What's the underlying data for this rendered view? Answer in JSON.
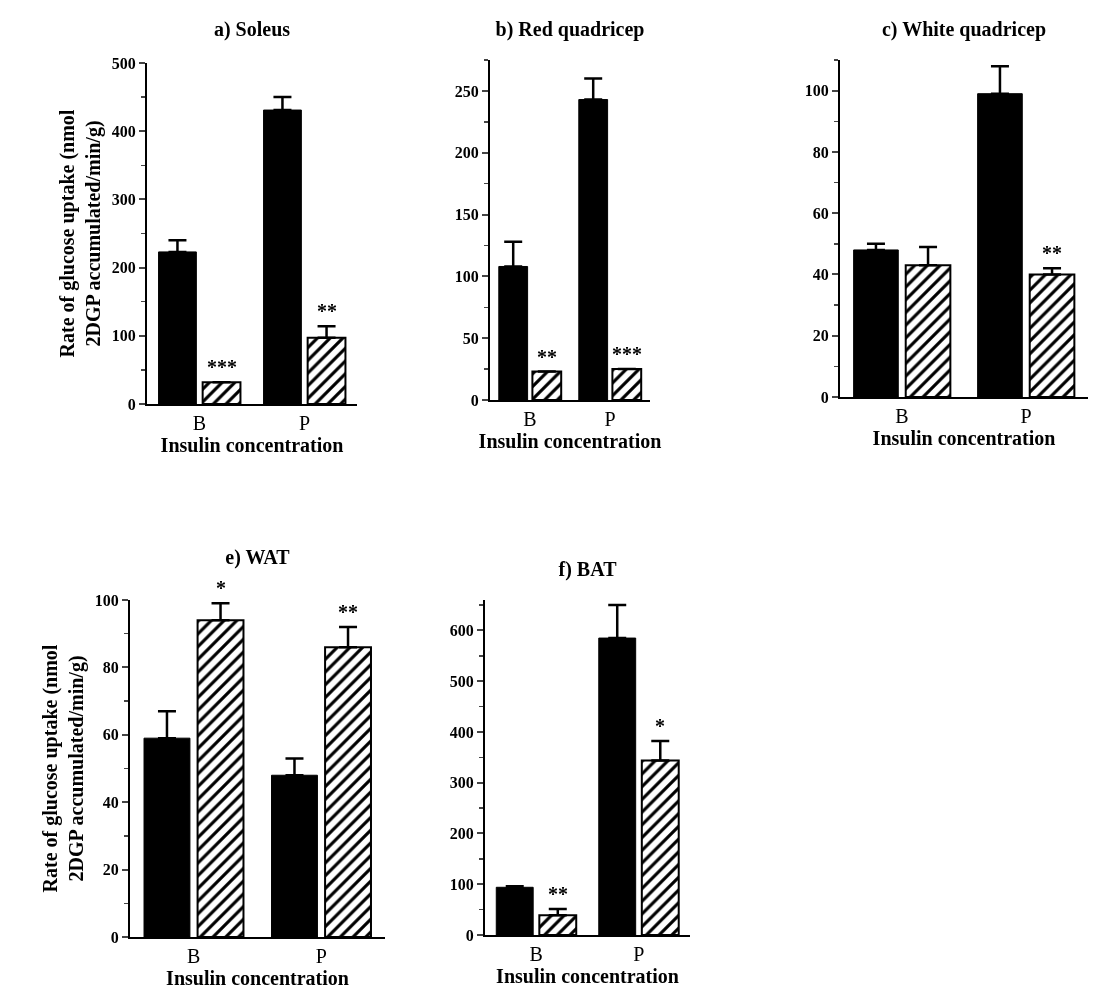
{
  "chart_data": [
    {
      "type": "bar",
      "title": "a) Soleus",
      "ylabel": "Rate of glucose uptake (nmol\n2DGP accumulated/min/g)",
      "xlabel": "Insulin concentration",
      "categories": [
        "B",
        "P"
      ],
      "series": [
        {
          "color": "#000000",
          "values": [
            223,
            431
          ],
          "errors": [
            [
              223,
              240
            ],
            [
              431,
              450
            ]
          ]
        },
        {
          "color": "#000000",
          "values": [
            32,
            97
          ],
          "errors": [
            null,
            [
              97,
              114
            ]
          ]
        }
      ],
      "ylim": [
        0,
        500
      ],
      "yticks": [
        0,
        100,
        200,
        300,
        400,
        500
      ],
      "annotations": [
        {
          "text": "***",
          "x": "B",
          "y": 32
        },
        {
          "text": "**",
          "x": "P",
          "y": 97
        }
      ]
    },
    {
      "type": "bar",
      "title": "b) Red quadricep",
      "xlabel": "Insulin concentration",
      "categories": [
        "B",
        "P"
      ],
      "series": [
        {
          "color": "#000000",
          "values": [
            108,
            243
          ],
          "errors": [
            [
              108,
              128
            ],
            [
              243,
              260
            ]
          ]
        },
        {
          "color": "#000000",
          "values": [
            23,
            25
          ],
          "errors": [
            null,
            null
          ]
        }
      ],
      "ylim": [
        0,
        275
      ],
      "yticks": [
        0,
        50,
        100,
        150,
        200,
        250
      ],
      "annotations": [
        {
          "text": "**",
          "x": "B",
          "y": 23
        },
        {
          "text": "***",
          "x": "P",
          "y": 25
        }
      ]
    },
    {
      "type": "bar",
      "title": "c) White quadricep",
      "xlabel": "Insulin concentration",
      "categories": [
        "B",
        "P"
      ],
      "series": [
        {
          "color": "#000000",
          "values": [
            48,
            99
          ],
          "errors": [
            [
              48,
              50
            ],
            [
              99,
              108
            ]
          ]
        },
        {
          "color": "#000000",
          "values": [
            43,
            40
          ],
          "errors": [
            [
              43,
              49
            ],
            [
              40,
              42
            ]
          ]
        }
      ],
      "ylim": [
        0,
        110
      ],
      "yticks": [
        0,
        20,
        40,
        60,
        80,
        100
      ],
      "annotations": [
        {
          "text": "**",
          "x": "P",
          "y": 40
        }
      ]
    },
    {
      "type": "bar",
      "title": "e) WAT",
      "ylabel": "Rate of glucose uptake (nmol\n2DGP accumulated/min/g)",
      "xlabel": "Insulin concentration",
      "categories": [
        "B",
        "P"
      ],
      "series": [
        {
          "color": "#000000",
          "values": [
            59,
            48
          ],
          "errors": [
            [
              59,
              67
            ],
            [
              48,
              53
            ]
          ]
        },
        {
          "color": "#000000",
          "values": [
            94,
            86
          ],
          "errors": [
            [
              94,
              99
            ],
            [
              86,
              92
            ]
          ]
        }
      ],
      "ylim": [
        0,
        100
      ],
      "yticks": [
        0,
        20,
        40,
        60,
        80,
        100
      ],
      "annotations": [
        {
          "text": "*",
          "x": "B",
          "y": 94
        },
        {
          "text": "**",
          "x": "P",
          "y": 86
        }
      ]
    },
    {
      "type": "bar",
      "title": "f) BAT",
      "xlabel": "Insulin concentration",
      "categories": [
        "B",
        "P"
      ],
      "series": [
        {
          "color": "#000000",
          "values": [
            94,
            585
          ],
          "errors": [
            [
              94,
              96
            ],
            [
              585,
              650
            ]
          ]
        },
        {
          "color": "#000000",
          "values": [
            39,
            344
          ],
          "errors": [
            [
              39,
              51
            ],
            [
              344,
              382
            ]
          ]
        }
      ],
      "ylim": [
        0,
        660
      ],
      "yticks": [
        0,
        100,
        200,
        300,
        400,
        500,
        600
      ],
      "annotations": [
        {
          "text": "**",
          "x": "B",
          "y": 39
        },
        {
          "text": "*",
          "x": "P",
          "y": 344
        }
      ]
    }
  ]
}
